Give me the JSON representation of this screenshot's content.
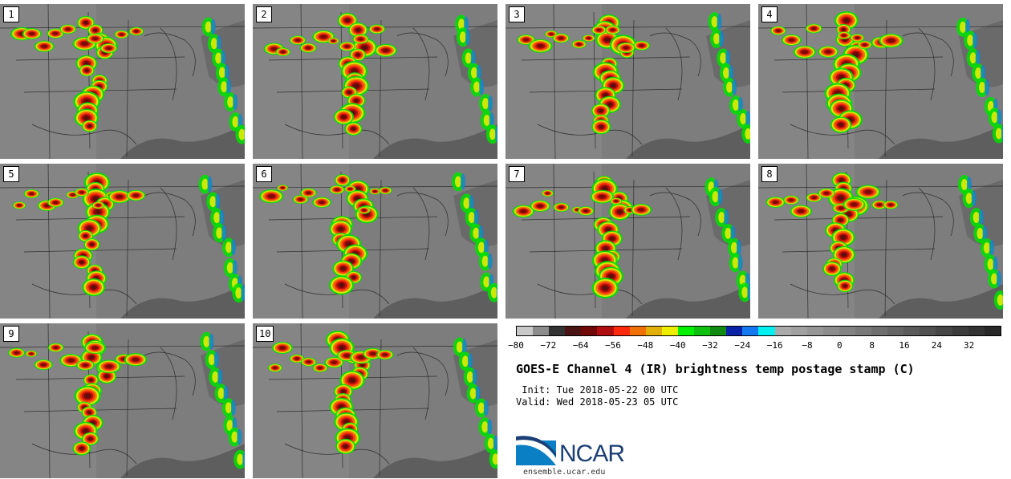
{
  "panels": [
    {
      "label": "1"
    },
    {
      "label": "2"
    },
    {
      "label": "3"
    },
    {
      "label": "4"
    },
    {
      "label": "5"
    },
    {
      "label": "6"
    },
    {
      "label": "7"
    },
    {
      "label": "8"
    },
    {
      "label": "9"
    },
    {
      "label": "10"
    }
  ],
  "colorbar": {
    "colors": [
      "#c8c8c8",
      "#8c8c8c",
      "#323232",
      "#4b1414",
      "#700808",
      "#b00e0e",
      "#ff2a0e",
      "#f07008",
      "#e0b008",
      "#eded00",
      "#00f000",
      "#10c010",
      "#108a10",
      "#0a22a8",
      "#1478f0",
      "#00f0f0",
      "#aaaaaa",
      "#a0a0a0",
      "#969696",
      "#8c8c8c",
      "#828282",
      "#787878",
      "#6e6e6e",
      "#646464",
      "#5a5a5a",
      "#505050",
      "#464646",
      "#3c3c3c",
      "#323232",
      "#282828"
    ],
    "ticks": [
      "−80",
      "−72",
      "−64",
      "−56",
      "−48",
      "−40",
      "−32",
      "−24",
      "−16",
      "−8",
      "0",
      "8",
      "16",
      "24",
      "32"
    ]
  },
  "title": "GOES-E Channel 4 (IR) brightness temp postage stamp (C)",
  "init": " Init: Tue 2018-05-22 00 UTC",
  "valid": "Valid: Wed 2018-05-23 05 UTC",
  "logo": {
    "text": "NCAR",
    "site": "ensemble.ucar.edu"
  }
}
